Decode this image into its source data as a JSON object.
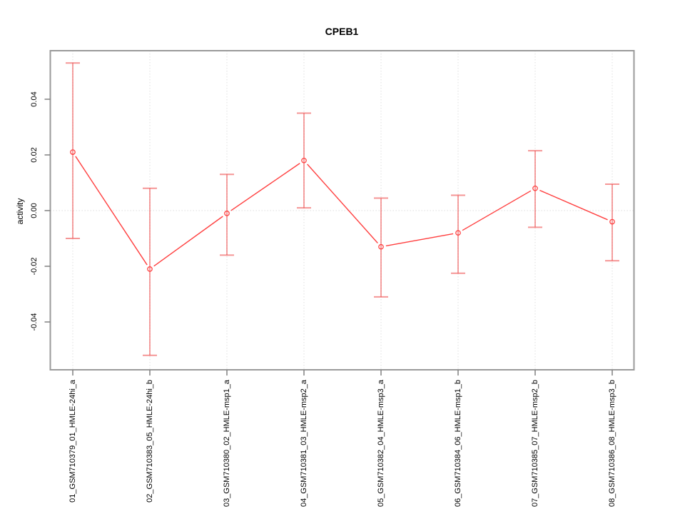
{
  "title": "CPEB1",
  "chart_data": {
    "type": "line",
    "title": "CPEB1",
    "xlabel": "",
    "ylabel": "activity",
    "ylim": [
      -0.056,
      0.057
    ],
    "yticks": [
      0.04,
      0.02,
      0.0,
      -0.02,
      -0.04
    ],
    "ytick_labels": [
      "0.04",
      "0.02",
      "0.00",
      "-0.02",
      "-0.04"
    ],
    "grid": {
      "vertical": "dotted line at each category",
      "horizontal": "dotted line at y=0"
    },
    "legend": null,
    "marker": "open-circle",
    "categories": [
      "01_GSM710379_01_HMLE-24hi_a",
      "02_GSM710383_05_HMLE-24hi_b",
      "03_GSM710380_02_HMLE-msp1_a",
      "04_GSM710381_03_HMLE-msp2_a",
      "05_GSM710382_04_HMLE-msp3_a",
      "06_GSM710384_06_HMLE-msp1_b",
      "07_GSM710385_07_HMLE-msp2_b",
      "08_GSM710386_08_HMLE-msp3_b"
    ],
    "series": [
      {
        "name": "activity",
        "values": [
          0.021,
          -0.021,
          -0.001,
          0.018,
          -0.013,
          -0.008,
          0.008,
          -0.004
        ],
        "upper": [
          0.053,
          0.008,
          0.013,
          0.035,
          0.0045,
          0.0055,
          0.0215,
          0.0095
        ],
        "lower": [
          -0.01,
          -0.052,
          -0.016,
          0.001,
          -0.031,
          -0.0225,
          -0.006,
          -0.018
        ]
      }
    ],
    "colors": {
      "line": "#ff4040",
      "marker": "#ff4040",
      "error_bar": "rgba(238,80,80,0.6)",
      "grid": "#dcdcdc",
      "frame": "#9a9a9a",
      "tick": "#808080",
      "text": "#000000",
      "background": "#ffffff"
    }
  }
}
